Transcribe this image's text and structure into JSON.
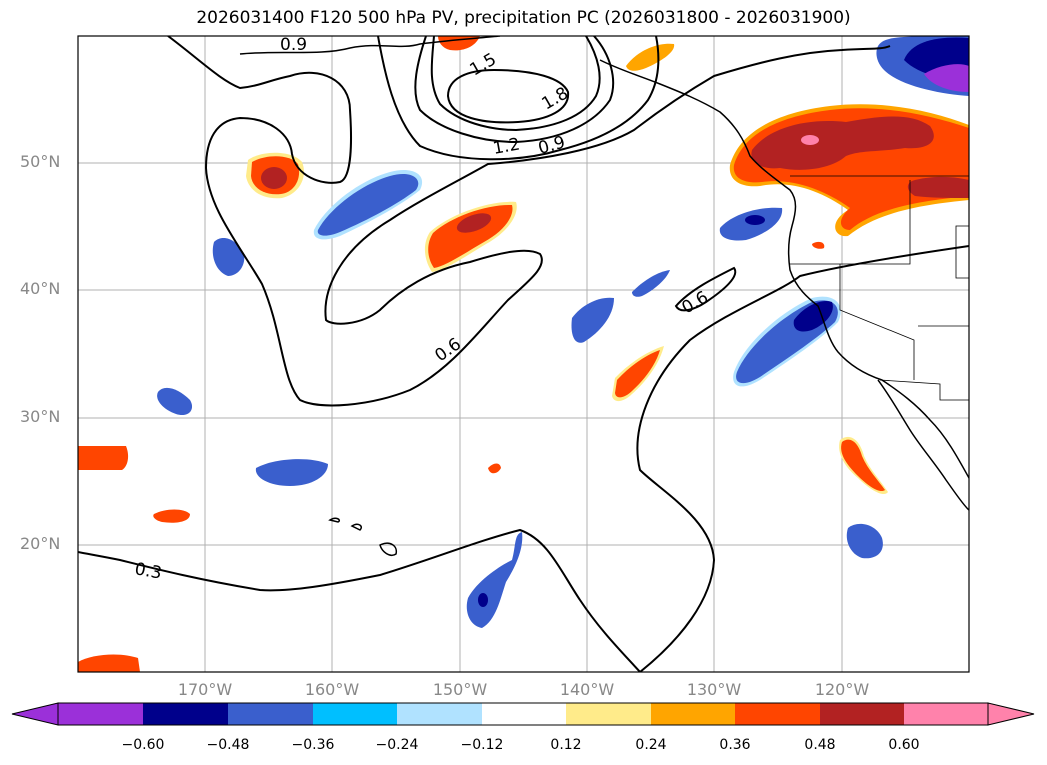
{
  "title": "2026031400 F120 500 hPa PV, precipitation PC (2026031800 - 2026031900)",
  "map": {
    "lat_labels": [
      "50°N",
      "40°N",
      "30°N",
      "20°N"
    ],
    "lon_labels": [
      "170°W",
      "160°W",
      "150°W",
      "140°W",
      "130°W",
      "120°W"
    ],
    "contour_labels": [
      "0.9",
      "1.5",
      "1.8",
      "1.2",
      "0.9",
      "0.6",
      "0.6",
      "0.3"
    ]
  },
  "colorbar": {
    "ticks": [
      "−0.60",
      "−0.48",
      "−0.36",
      "−0.24",
      "−0.12",
      "0.12",
      "0.24",
      "0.36",
      "0.48",
      "0.60"
    ],
    "colors": [
      "#9b30d9",
      "#00008b",
      "#3a5fcd",
      "#00bfff",
      "#b0e2ff",
      "#ffffff",
      "#ffeb8a",
      "#ffa500",
      "#ff4500",
      "#b22222",
      "#ff82ab"
    ]
  },
  "palette": {
    "positive_colors": [
      "#ffeb8a",
      "#ffa500",
      "#ff4500",
      "#b22222",
      "#ff82ab"
    ],
    "negative_colors": [
      "#b0e2ff",
      "#00bfff",
      "#3a5fcd",
      "#00008b",
      "#9b30d9"
    ],
    "grid": "#b0b0b0",
    "contour": "#000000"
  }
}
